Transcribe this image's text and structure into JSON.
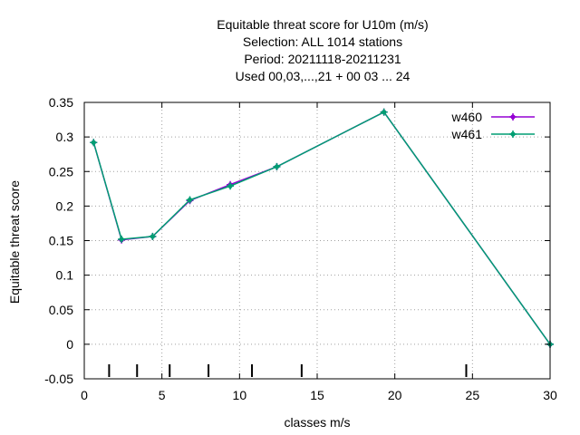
{
  "chart_data": {
    "type": "line",
    "title": [
      "Equitable threat score  for U10m (m/s)",
      "Selection: ALL   1014 stations",
      "Period: 20211118-20211231",
      "Used  00,03,...,21  + 00 03 ... 24"
    ],
    "xlabel": "classes m/s",
    "ylabel": "Equitable threat score",
    "xlim": [
      0,
      30
    ],
    "ylim": [
      -0.05,
      0.35
    ],
    "xticks": [
      0,
      5,
      10,
      15,
      20,
      25,
      30
    ],
    "xtick_labels": [
      "0",
      "5",
      "10",
      "15",
      "20",
      "25",
      "30"
    ],
    "yticks": [
      -0.05,
      0,
      0.05,
      0.1,
      0.15,
      0.2,
      0.25,
      0.3,
      0.35
    ],
    "ytick_labels": [
      "-0.05",
      "0",
      "0.05",
      "0.1",
      "0.15",
      "0.2",
      "0.25",
      "0.3",
      "0.35"
    ],
    "grid": true,
    "legend_position": "top-right",
    "class_markers_x": [
      1.6,
      3.4,
      5.5,
      8.0,
      10.8,
      14.0,
      24.6
    ],
    "series": [
      {
        "name": "w460",
        "color": "#9400d3",
        "x": [
          0.6,
          2.4,
          4.4,
          6.8,
          9.4,
          12.4,
          19.3,
          30.0
        ],
        "y": [
          0.292,
          0.151,
          0.156,
          0.208,
          0.231,
          0.257,
          0.336,
          0.0
        ]
      },
      {
        "name": "w461",
        "color": "#009e73",
        "x": [
          0.6,
          2.4,
          4.4,
          6.8,
          9.4,
          12.4,
          19.3,
          30.0
        ],
        "y": [
          0.292,
          0.152,
          0.156,
          0.209,
          0.229,
          0.257,
          0.336,
          0.0
        ]
      }
    ]
  }
}
